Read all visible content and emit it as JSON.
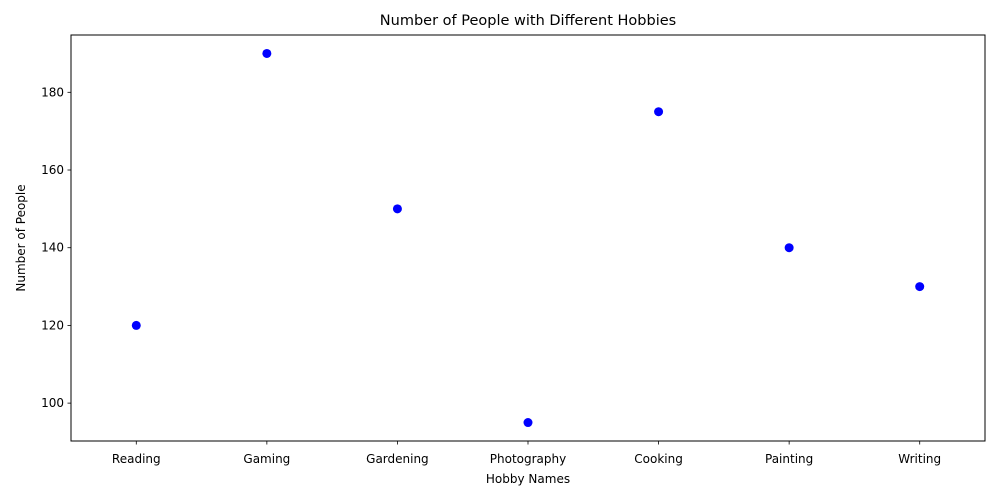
{
  "chart_data": {
    "type": "scatter",
    "title": "Number of People with Different Hobbies",
    "xlabel": "Hobby Names",
    "ylabel": "Number of People",
    "categories": [
      "Reading",
      "Gaming",
      "Gardening",
      "Photography",
      "Cooking",
      "Painting",
      "Writing"
    ],
    "series": [
      {
        "values": [
          120,
          190,
          150,
          95,
          175,
          140,
          130
        ]
      }
    ],
    "ylim": [
      90.25,
      194.75
    ],
    "yticks": [
      100,
      120,
      140,
      160,
      180
    ],
    "grid": false,
    "legend": "none",
    "colors": {
      "point": "#0000ff",
      "axis": "#000000",
      "background": "#ffffff"
    }
  }
}
